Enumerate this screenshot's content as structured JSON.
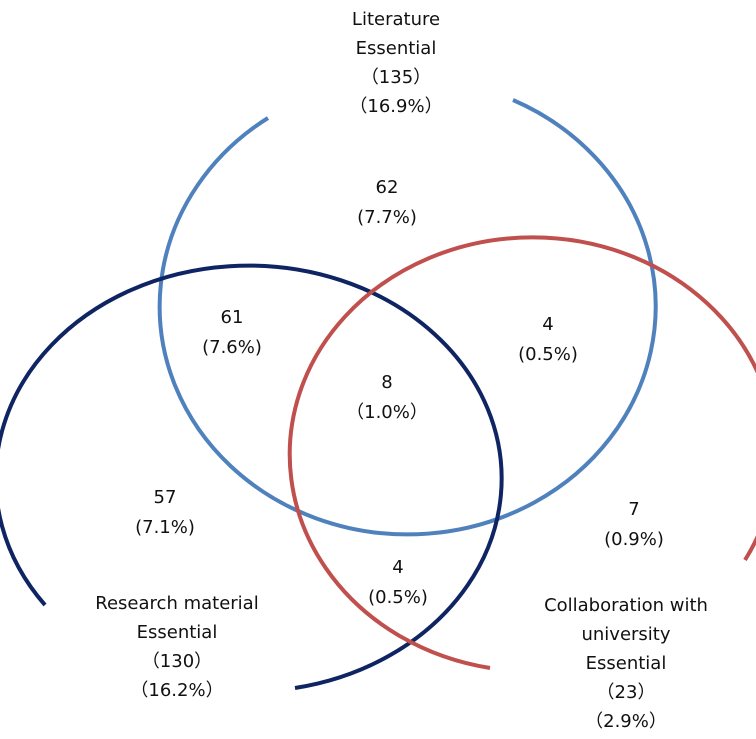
{
  "sets": [
    {
      "lines": [
        "Literature",
        "Essential",
        "（135）",
        "（16.9%）"
      ]
    },
    {
      "lines": [
        "Research material",
        "Essential",
        "（130）",
        "（16.2%）"
      ]
    },
    {
      "lines": [
        "Collaboration with",
        "university",
        "Essential",
        "（23）",
        "（2.9%）"
      ]
    }
  ],
  "regions": [
    {
      "count": 62,
      "percent": "(7.7%)"
    },
    {
      "count": 61,
      "percent": "(7.6%)"
    },
    {
      "count": 4,
      "percent": "(0.5%)"
    },
    {
      "count": 8,
      "percent": "（1.0%）"
    },
    {
      "count": 57,
      "percent": "(7.1%)"
    },
    {
      "count": 4,
      "percent": "(0.5%)"
    },
    {
      "count": 7,
      "percent": "(0.9%)"
    }
  ]
}
